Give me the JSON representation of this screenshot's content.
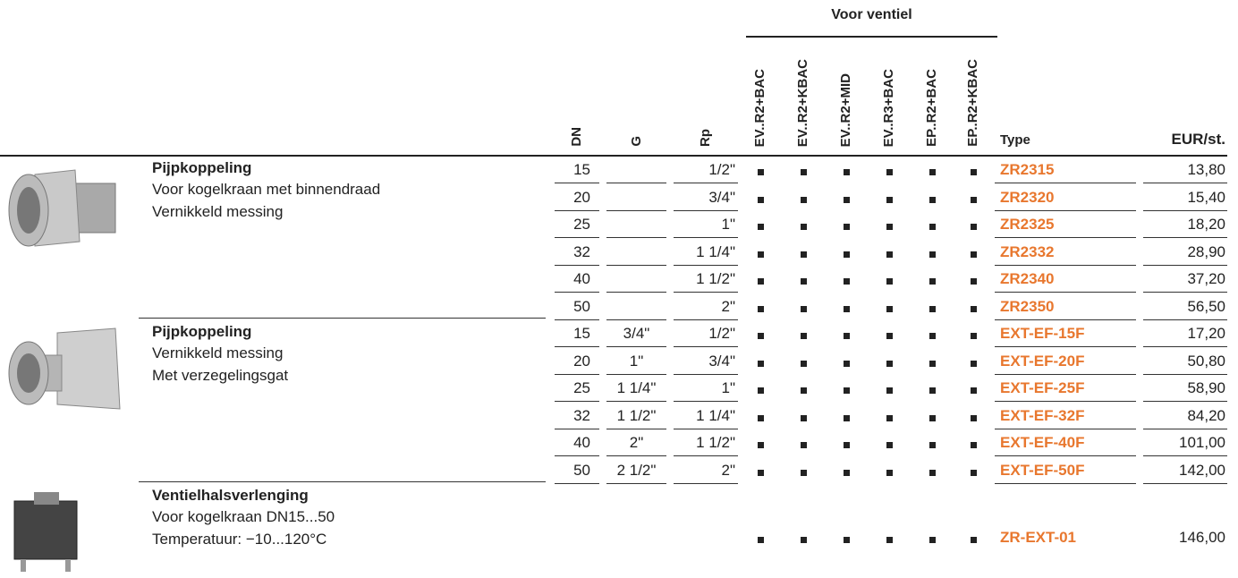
{
  "header": {
    "group_label": "Voor ventiel",
    "columns": [
      "DN",
      "G",
      "Rp",
      "EV..R2+BAC",
      "EV..R2+KBAC",
      "EV..R2+MID",
      "EV..R3+BAC",
      "EP..R2+BAC",
      "EP..R2+KBAC",
      "Type",
      "EUR/st."
    ]
  },
  "groups": [
    {
      "title": "Pijpkoppeling",
      "description": [
        "Voor kogelkraan met binnendraad",
        "Vernikkeld messing"
      ],
      "rows": [
        {
          "dn": "15",
          "rp": "1/2\"",
          "type": "ZR2315",
          "price": "13,80"
        },
        {
          "dn": "20",
          "rp": "3/4\"",
          "type": "ZR2320",
          "price": "15,40"
        },
        {
          "dn": "25",
          "rp": "1\"",
          "type": "ZR2325",
          "price": "18,20"
        },
        {
          "dn": "32",
          "rp": "1 1/4\"",
          "type": "ZR2332",
          "price": "28,90"
        },
        {
          "dn": "40",
          "rp": "1 1/2\"",
          "type": "ZR2340",
          "price": "37,20"
        },
        {
          "dn": "50",
          "rp": "2\"",
          "type": "ZR2350",
          "price": "56,50"
        }
      ]
    },
    {
      "title": "Pijpkoppeling",
      "description": [
        "Vernikkeld messing",
        "Met verzegelingsgat"
      ],
      "rows": [
        {
          "dn": "15",
          "g": "3/4\"",
          "rp": "1/2\"",
          "type": "EXT-EF-15F",
          "price": "17,20"
        },
        {
          "dn": "20",
          "g": "1\"",
          "rp": "3/4\"",
          "type": "EXT-EF-20F",
          "price": "50,80"
        },
        {
          "dn": "25",
          "g": "1 1/4\"",
          "rp": "1\"",
          "type": "EXT-EF-25F",
          "price": "58,90"
        },
        {
          "dn": "32",
          "g": "1 1/2\"",
          "rp": "1 1/4\"",
          "type": "EXT-EF-32F",
          "price": "84,20"
        },
        {
          "dn": "40",
          "g": "2\"",
          "rp": "1 1/2\"",
          "type": "EXT-EF-40F",
          "price": "101,00"
        },
        {
          "dn": "50",
          "g": "2 1/2\"",
          "rp": "2\"",
          "type": "EXT-EF-50F",
          "price": "142,00"
        }
      ]
    },
    {
      "title": "Ventielhalsverlenging",
      "description": [
        "Voor kogelkraan DN15...50",
        "Temperatuur: −10...120°C"
      ],
      "rows": [
        {
          "type": "ZR-EXT-01",
          "price": "146,00"
        }
      ]
    }
  ]
}
